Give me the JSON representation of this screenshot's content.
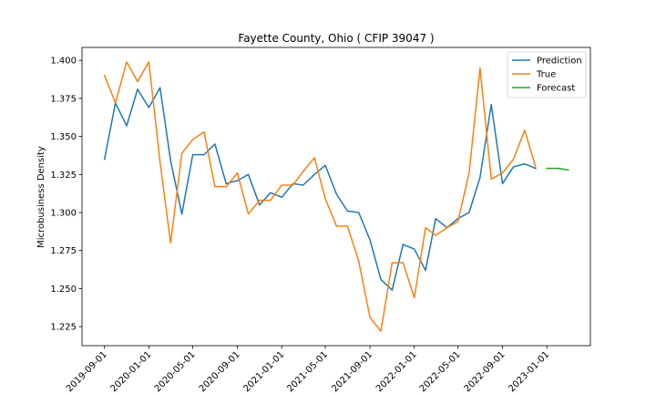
{
  "chart_data": {
    "type": "line",
    "title": "Fayette County, Ohio ( CFIP 39047 )",
    "xlabel": "",
    "ylabel": "Microbusiness Density",
    "x_ticks": [
      "2019-09-01",
      "2020-01-01",
      "2020-05-01",
      "2020-09-01",
      "2021-01-01",
      "2021-05-01",
      "2021-09-01",
      "2022-01-01",
      "2022-05-01",
      "2022-09-01",
      "2023-01-01"
    ],
    "y_ticks": [
      "1.225",
      "1.250",
      "1.275",
      "1.300",
      "1.325",
      "1.350",
      "1.375",
      "1.400"
    ],
    "xlim": [
      "2019-07-01",
      "2023-05-01"
    ],
    "ylim": [
      1.2125,
      1.4085
    ],
    "grid": false,
    "legend_position": "top-right",
    "series": [
      {
        "name": "Prediction",
        "color": "#1f77b4",
        "points": [
          [
            "2019-09-01",
            1.335
          ],
          [
            "2019-10-01",
            1.372
          ],
          [
            "2019-11-01",
            1.357
          ],
          [
            "2019-12-01",
            1.381
          ],
          [
            "2020-01-01",
            1.369
          ],
          [
            "2020-02-01",
            1.382
          ],
          [
            "2020-03-01",
            1.334
          ],
          [
            "2020-04-01",
            1.299
          ],
          [
            "2020-05-01",
            1.338
          ],
          [
            "2020-06-01",
            1.338
          ],
          [
            "2020-07-01",
            1.345
          ],
          [
            "2020-08-01",
            1.319
          ],
          [
            "2020-09-01",
            1.321
          ],
          [
            "2020-10-01",
            1.325
          ],
          [
            "2020-11-01",
            1.305
          ],
          [
            "2020-12-01",
            1.313
          ],
          [
            "2021-01-01",
            1.31
          ],
          [
            "2021-02-01",
            1.319
          ],
          [
            "2021-03-01",
            1.318
          ],
          [
            "2021-04-01",
            1.325
          ],
          [
            "2021-05-01",
            1.331
          ],
          [
            "2021-06-01",
            1.312
          ],
          [
            "2021-07-01",
            1.301
          ],
          [
            "2021-08-01",
            1.3
          ],
          [
            "2021-09-01",
            1.282
          ],
          [
            "2021-10-01",
            1.256
          ],
          [
            "2021-11-01",
            1.249
          ],
          [
            "2021-12-01",
            1.279
          ],
          [
            "2022-01-01",
            1.276
          ],
          [
            "2022-02-01",
            1.262
          ],
          [
            "2022-03-01",
            1.296
          ],
          [
            "2022-04-01",
            1.29
          ],
          [
            "2022-05-01",
            1.296
          ],
          [
            "2022-06-01",
            1.3
          ],
          [
            "2022-07-01",
            1.323
          ],
          [
            "2022-08-01",
            1.371
          ],
          [
            "2022-09-01",
            1.319
          ],
          [
            "2022-10-01",
            1.33
          ],
          [
            "2022-11-01",
            1.332
          ],
          [
            "2022-12-01",
            1.329
          ]
        ]
      },
      {
        "name": "True",
        "color": "#ff7f0e",
        "points": [
          [
            "2019-09-01",
            1.39
          ],
          [
            "2019-10-01",
            1.372
          ],
          [
            "2019-11-01",
            1.399
          ],
          [
            "2019-12-01",
            1.386
          ],
          [
            "2020-01-01",
            1.399
          ],
          [
            "2020-02-01",
            1.333
          ],
          [
            "2020-03-01",
            1.28
          ],
          [
            "2020-04-01",
            1.339
          ],
          [
            "2020-05-01",
            1.348
          ],
          [
            "2020-06-01",
            1.353
          ],
          [
            "2020-07-01",
            1.317
          ],
          [
            "2020-08-01",
            1.317
          ],
          [
            "2020-09-01",
            1.326
          ],
          [
            "2020-10-01",
            1.299
          ],
          [
            "2020-11-01",
            1.308
          ],
          [
            "2020-12-01",
            1.308
          ],
          [
            "2021-01-01",
            1.318
          ],
          [
            "2021-02-01",
            1.318
          ],
          [
            "2021-03-01",
            1.327
          ],
          [
            "2021-04-01",
            1.336
          ],
          [
            "2021-05-01",
            1.309
          ],
          [
            "2021-06-01",
            1.291
          ],
          [
            "2021-07-01",
            1.291
          ],
          [
            "2021-08-01",
            1.268
          ],
          [
            "2021-09-01",
            1.231
          ],
          [
            "2021-10-01",
            1.222
          ],
          [
            "2021-11-01",
            1.267
          ],
          [
            "2021-12-01",
            1.267
          ],
          [
            "2022-01-01",
            1.244
          ],
          [
            "2022-02-01",
            1.29
          ],
          [
            "2022-03-01",
            1.285
          ],
          [
            "2022-04-01",
            1.29
          ],
          [
            "2022-05-01",
            1.294
          ],
          [
            "2022-06-01",
            1.326
          ],
          [
            "2022-07-01",
            1.395
          ],
          [
            "2022-08-01",
            1.322
          ],
          [
            "2022-09-01",
            1.326
          ],
          [
            "2022-10-01",
            1.335
          ],
          [
            "2022-11-01",
            1.354
          ],
          [
            "2022-12-01",
            1.33
          ]
        ]
      },
      {
        "name": "Forecast",
        "color": "#2ca02c",
        "points": [
          [
            "2023-01-01",
            1.329
          ],
          [
            "2023-02-01",
            1.329
          ],
          [
            "2023-03-01",
            1.328
          ]
        ]
      }
    ]
  }
}
